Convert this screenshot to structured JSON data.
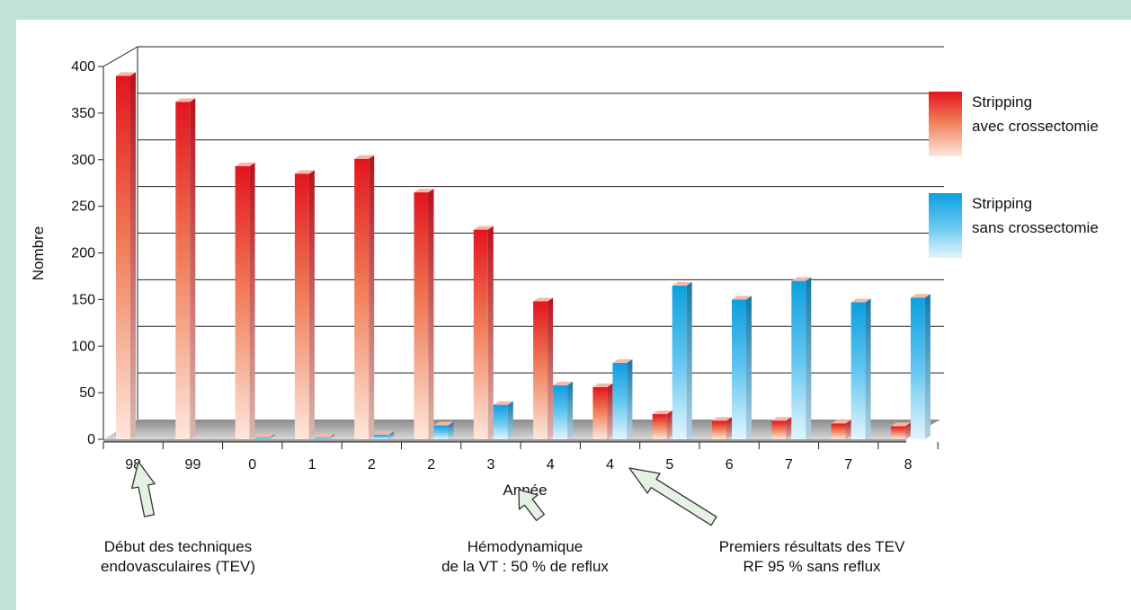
{
  "chart_data": {
    "type": "bar",
    "ylabel": "Nombre",
    "xlabel": "Année",
    "categories": [
      "98",
      "99",
      "0",
      "1",
      "2",
      "2",
      "3",
      "4",
      "4",
      "5",
      "6",
      "7",
      "7",
      "8"
    ],
    "series": [
      {
        "name": "Stripping avec crossectomie",
        "values": [
          390,
          362,
          293,
          285,
          301,
          265,
          225,
          148,
          56,
          27,
          20,
          20,
          17,
          14
        ]
      },
      {
        "name": "Stripping sans crossectomie",
        "values": [
          0,
          0,
          2,
          2,
          5,
          15,
          37,
          58,
          82,
          165,
          150,
          170,
          147,
          152
        ]
      }
    ],
    "legend": [
      {
        "line1": "Stripping",
        "line2": "avec crossectomie",
        "color": "#e8202a"
      },
      {
        "line1": "Stripping",
        "line2": "sans crossectomie",
        "color": "#12a8e6"
      }
    ],
    "yticks": [
      0,
      50,
      100,
      150,
      200,
      250,
      300,
      350,
      400
    ],
    "ylim": [
      0,
      400
    ],
    "grid": true,
    "colors": {
      "avec": "#e8202a",
      "sans": "#12a8e6"
    },
    "annotations": [
      {
        "text": "Début des techniques\nendovasculaires (TEV)"
      },
      {
        "text": "Hémodynamique\nde la VT : 50 % de reflux"
      },
      {
        "text": "Premiers résultats des TEV\nRF 95 % sans reflux"
      }
    ]
  }
}
